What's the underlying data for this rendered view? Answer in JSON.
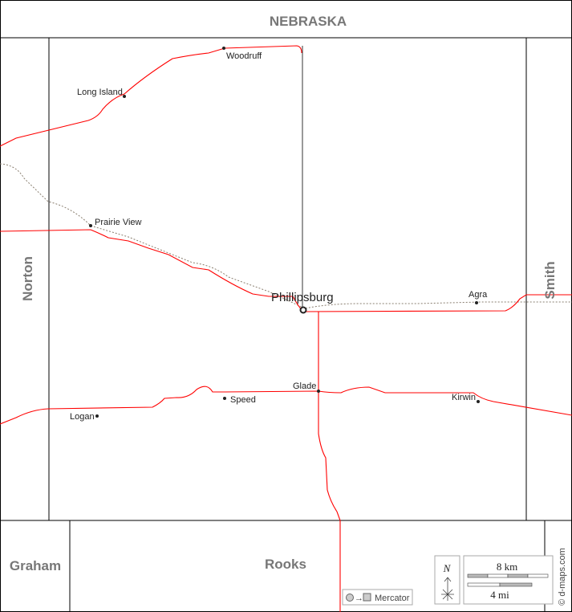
{
  "neighbors": {
    "north": "NEBRASKA",
    "west": "Norton",
    "east": "Smith",
    "southwest": "Graham",
    "south": "Rooks"
  },
  "county_seat": "Phillipsburg",
  "towns": [
    "Woodruff",
    "Long Island",
    "Prairie View",
    "Agra",
    "Glade",
    "Speed",
    "Logan",
    "Kirwin"
  ],
  "legend": {
    "projection": "Mercator",
    "north": "N",
    "scale_km": "8 km",
    "scale_mi": "4 mi",
    "credit": "© d-maps.com"
  },
  "colors": {
    "road": "#ff0000",
    "border": "#000000",
    "county_label": "#777777",
    "railway": "#8a7f70"
  }
}
